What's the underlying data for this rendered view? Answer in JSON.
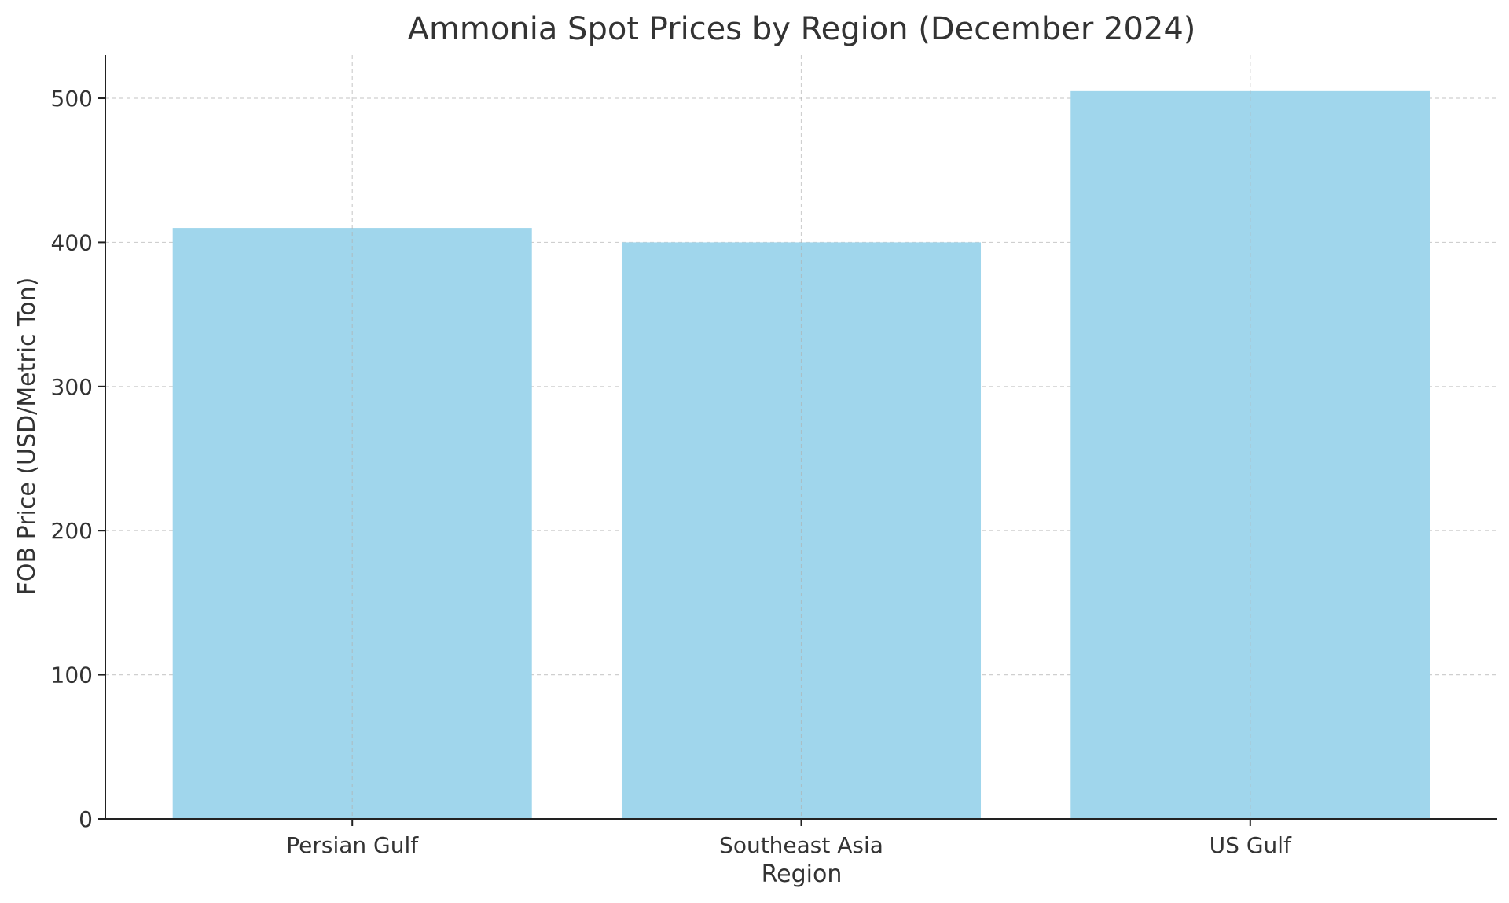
{
  "chart_data": {
    "type": "bar",
    "title": "Ammonia Spot Prices by Region (December 2024)",
    "xlabel": "Region",
    "ylabel": "FOB Price (USD/Metric Ton)",
    "categories": [
      "Persian Gulf",
      "Southeast Asia",
      "US Gulf"
    ],
    "values": [
      410,
      400,
      505
    ],
    "ylim": [
      0,
      530
    ],
    "yticks": [
      0,
      100,
      200,
      300,
      400,
      500
    ],
    "grid": true,
    "bar_color": "#a0d6ec",
    "legend": "none"
  }
}
